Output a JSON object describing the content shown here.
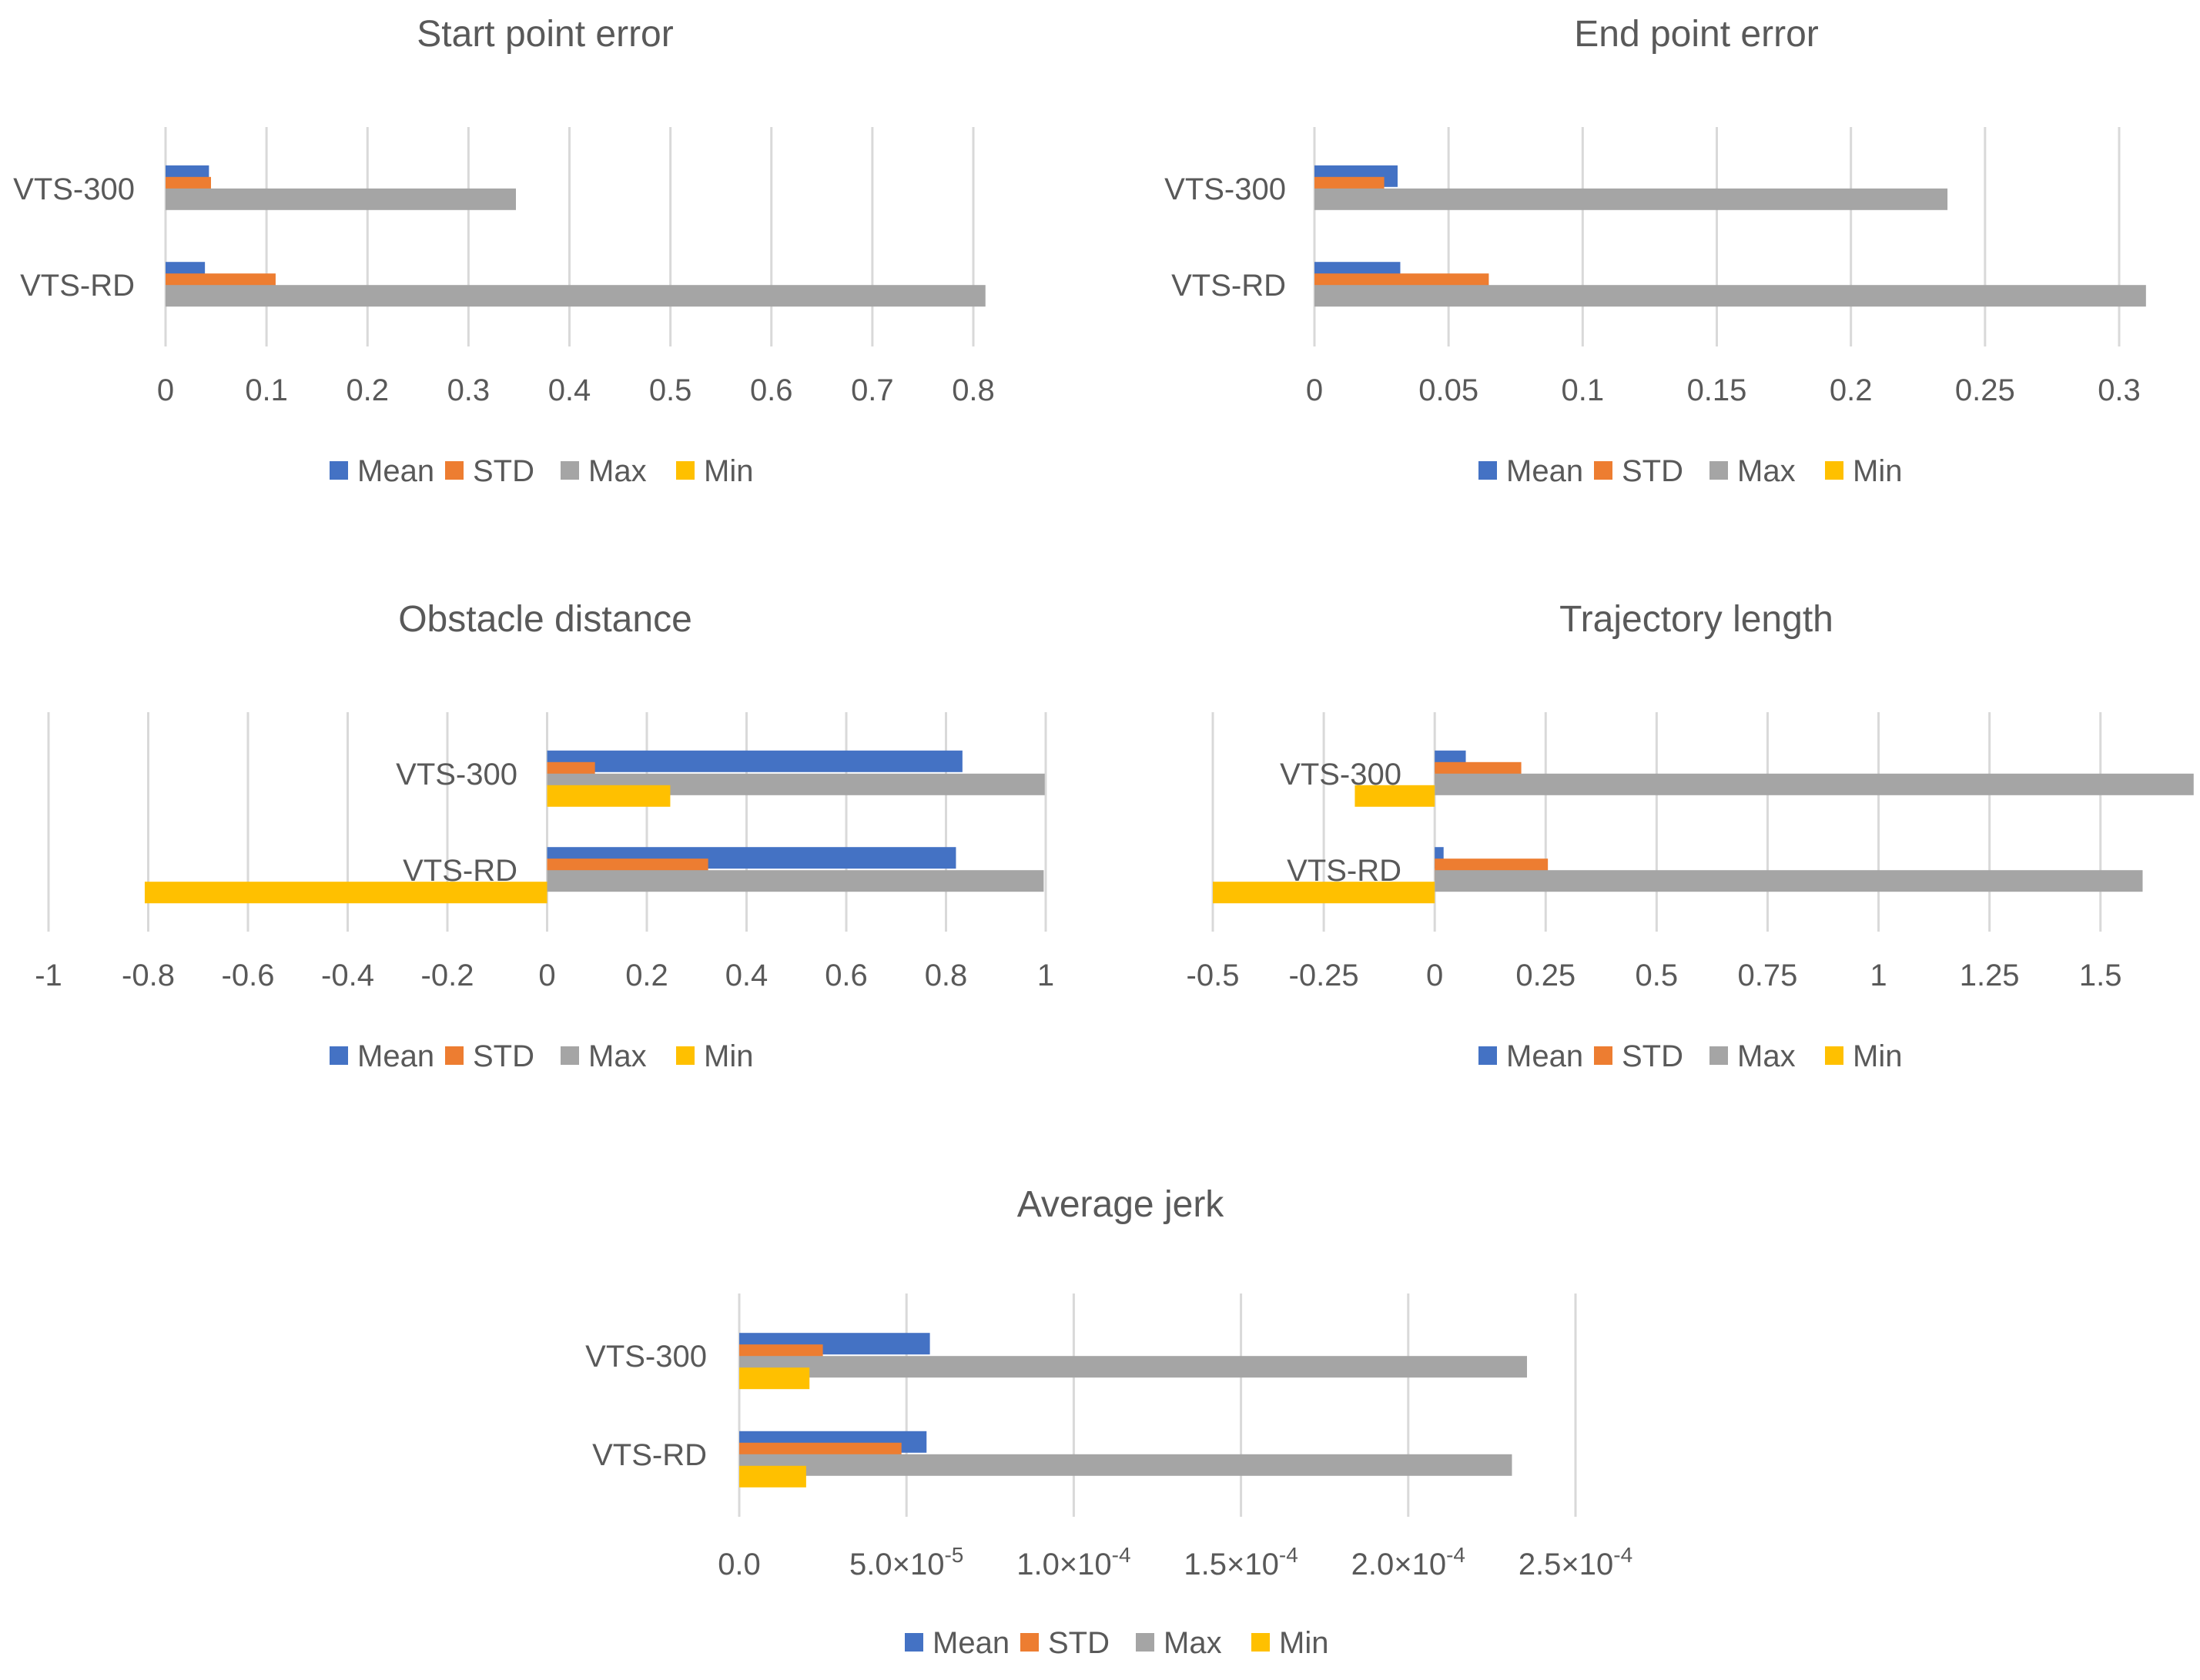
{
  "series_colors": {
    "Mean": "#4472c4",
    "STD": "#ed7d31",
    "Max": "#a5a5a5",
    "Min": "#ffc000"
  },
  "chart_data": [
    {
      "type": "bar",
      "orientation": "horizontal",
      "title": "Start point error",
      "categories": [
        "VTS-300",
        "VTS-RD"
      ],
      "series": [
        {
          "name": "Mean",
          "values": [
            0.043,
            0.039
          ]
        },
        {
          "name": "STD",
          "values": [
            0.045,
            0.109
          ]
        },
        {
          "name": "Max",
          "values": [
            0.347,
            0.812
          ]
        },
        {
          "name": "Min",
          "values": [
            0.0,
            0.0
          ]
        }
      ],
      "xlim": [
        0,
        0.8
      ],
      "xticks": [
        0,
        0.1,
        0.2,
        0.3,
        0.4,
        0.5,
        0.6,
        0.7,
        0.8
      ],
      "xtick_labels": [
        "0",
        "0.1",
        "0.2",
        "0.3",
        "0.4",
        "0.5",
        "0.6",
        "0.7",
        "0.8"
      ],
      "legend": [
        "Mean",
        "STD",
        "Max",
        "Min"
      ],
      "legend_position": "bottom"
    },
    {
      "type": "bar",
      "orientation": "horizontal",
      "title": "End point error",
      "categories": [
        "VTS-300",
        "VTS-RD"
      ],
      "series": [
        {
          "name": "Mean",
          "values": [
            0.031,
            0.032
          ]
        },
        {
          "name": "STD",
          "values": [
            0.026,
            0.065
          ]
        },
        {
          "name": "Max",
          "values": [
            0.236,
            0.31
          ]
        },
        {
          "name": "Min",
          "values": [
            0.0,
            0.0
          ]
        }
      ],
      "xlim": [
        0,
        0.3
      ],
      "xticks": [
        0,
        0.05,
        0.1,
        0.15,
        0.2,
        0.25,
        0.3
      ],
      "xtick_labels": [
        "0",
        "0.05",
        "0.1",
        "0.15",
        "0.2",
        "0.25",
        "0.3"
      ],
      "legend": [
        "Mean",
        "STD",
        "Max",
        "Min"
      ],
      "legend_position": "bottom"
    },
    {
      "type": "bar",
      "orientation": "horizontal",
      "title": "Obstacle distance",
      "categories": [
        "VTS-300",
        "VTS-RD"
      ],
      "series": [
        {
          "name": "Mean",
          "values": [
            0.833,
            0.82
          ]
        },
        {
          "name": "STD",
          "values": [
            0.096,
            0.323
          ]
        },
        {
          "name": "Max",
          "values": [
            0.998,
            0.996
          ]
        },
        {
          "name": "Min",
          "values": [
            0.247,
            -0.807
          ]
        }
      ],
      "xlim": [
        -1,
        1
      ],
      "xticks": [
        -1,
        -0.8,
        -0.6,
        -0.4,
        -0.2,
        0,
        0.2,
        0.4,
        0.6,
        0.8,
        1
      ],
      "xtick_labels": [
        "-1",
        "-0.8",
        "-0.6",
        "-0.4",
        "-0.2",
        "0",
        "0.2",
        "0.4",
        "0.6",
        "0.8",
        "1"
      ],
      "legend": [
        "Mean",
        "STD",
        "Max",
        "Min"
      ],
      "legend_position": "bottom"
    },
    {
      "type": "bar",
      "orientation": "horizontal",
      "title": "Trajectory length",
      "categories": [
        "VTS-300",
        "VTS-RD"
      ],
      "series": [
        {
          "name": "Mean",
          "values": [
            0.07,
            0.02
          ]
        },
        {
          "name": "STD",
          "values": [
            0.195,
            0.255
          ]
        },
        {
          "name": "Max",
          "values": [
            1.71,
            1.595
          ]
        },
        {
          "name": "Min",
          "values": [
            -0.18,
            -0.5
          ]
        }
      ],
      "xlim": [
        -0.5,
        1.7
      ],
      "xticks": [
        -0.5,
        -0.25,
        0,
        0.25,
        0.5,
        0.75,
        1,
        1.25,
        1.5
      ],
      "xtick_labels": [
        "-0.5",
        "-0.25",
        "0",
        "0.25",
        "0.5",
        "0.75",
        "1",
        "1.25",
        "1.5"
      ],
      "legend": [
        "Mean",
        "STD",
        "Max",
        "Min"
      ],
      "legend_position": "bottom"
    },
    {
      "type": "bar",
      "orientation": "horizontal",
      "title": "Average jerk",
      "categories": [
        "VTS-300",
        "VTS-RD"
      ],
      "series": [
        {
          "name": "Mean",
          "values": [
            5.7e-05,
            5.6e-05
          ]
        },
        {
          "name": "STD",
          "values": [
            2.5e-05,
            4.85e-05
          ]
        },
        {
          "name": "Max",
          "values": [
            0.0002355,
            0.000231
          ]
        },
        {
          "name": "Min",
          "values": [
            2.1e-05,
            2e-05
          ]
        }
      ],
      "xlim": [
        0,
        0.00025
      ],
      "xticks": [
        0,
        5e-05,
        0.0001,
        0.00015,
        0.0002,
        0.00025
      ],
      "xtick_labels": [
        {
          "base": "0.0",
          "exp": ""
        },
        {
          "base": "5.0×10",
          "exp": "-5"
        },
        {
          "base": "1.0×10",
          "exp": "-4"
        },
        {
          "base": "1.5×10",
          "exp": "-4"
        },
        {
          "base": "2.0×10",
          "exp": "-4"
        },
        {
          "base": "2.5×10",
          "exp": "-4"
        }
      ],
      "legend": [
        "Mean",
        "STD",
        "Max",
        "Min"
      ],
      "legend_position": "bottom"
    }
  ]
}
